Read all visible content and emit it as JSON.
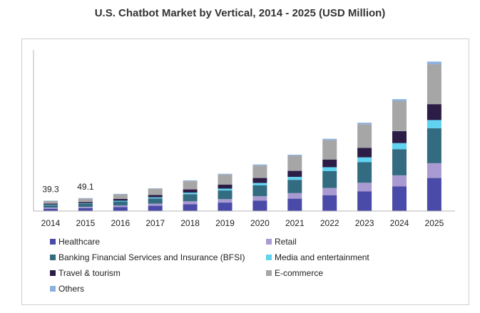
{
  "chart_data": {
    "type": "bar",
    "stacked": true,
    "title": "U.S. Chatbot Market by Vertical, 2014 - 2025 (USD Million)",
    "xlabel": "",
    "ylabel": "",
    "categories": [
      "2014",
      "2015",
      "2016",
      "2017",
      "2018",
      "2019",
      "2020",
      "2021",
      "2022",
      "2023",
      "2024",
      "2025"
    ],
    "ylim": [
      0,
      560
    ],
    "grid": false,
    "legend_position": "bottom",
    "annotations": [
      {
        "category": "2014",
        "text": "39.3"
      },
      {
        "category": "2015",
        "text": "49.1"
      }
    ],
    "series": [
      {
        "name": "Healthcare",
        "color": "#4a4aa8",
        "values": [
          9,
          11,
          15,
          20,
          26,
          32,
          39,
          47,
          60,
          74,
          93,
          125
        ]
      },
      {
        "name": "Retail",
        "color": "#a99bd1",
        "values": [
          4,
          5,
          6,
          8,
          11,
          13,
          17,
          21,
          27,
          33,
          42,
          56
        ]
      },
      {
        "name": "Banking Financial Services and Insurance (BFSI)",
        "color": "#336b80",
        "values": [
          9,
          11,
          15,
          20,
          27,
          33,
          41,
          50,
          64,
          78,
          99,
          132
        ]
      },
      {
        "name": "Media and entertainment",
        "color": "#5fd3ef",
        "values": [
          2,
          2,
          3,
          4,
          6,
          7,
          9,
          11,
          15,
          18,
          23,
          31
        ]
      },
      {
        "name": "Travel & tourism",
        "color": "#2c1d47",
        "values": [
          4,
          5,
          7,
          9,
          12,
          15,
          19,
          23,
          29,
          36,
          45,
          60
        ]
      },
      {
        "name": "E-commerce",
        "color": "#a6a6a6",
        "values": [
          10,
          13,
          17,
          23,
          31,
          38,
          47,
          57,
          73,
          89,
          113,
          151
        ]
      },
      {
        "name": "Others",
        "color": "#8db1de",
        "values": [
          1.3,
          2.1,
          2,
          2,
          3,
          3,
          4,
          4,
          5,
          6,
          8,
          10
        ]
      }
    ]
  }
}
